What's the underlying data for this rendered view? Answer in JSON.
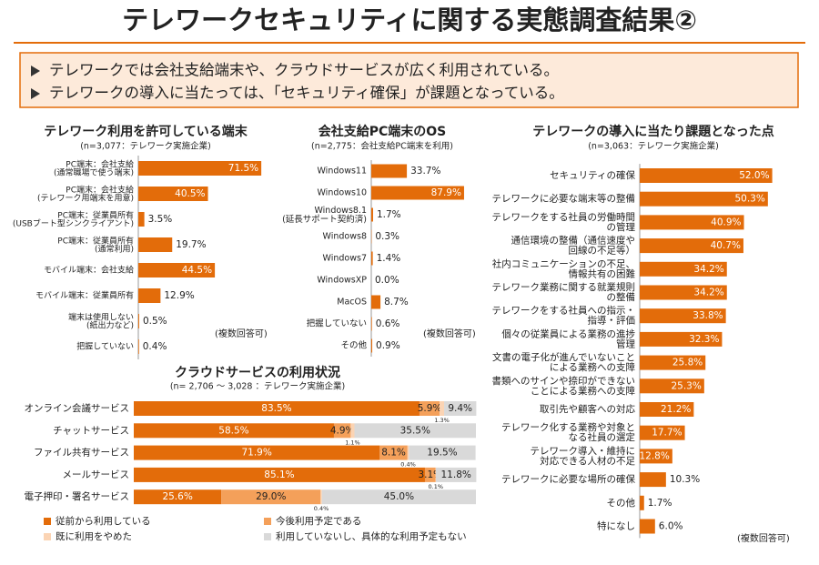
{
  "header": {
    "title": "テレワークセキュリティに関する実態調査結果②"
  },
  "summary": [
    "テレワークでは会社支給端末や、クラウドサービスが広く利用されている。",
    "テレワークの導入に当たっては、「セキュリティ確保」が課題となっている。"
  ],
  "chart_data": [
    {
      "type": "bar",
      "title": "テレワーク利用を許可している端末",
      "subtitle": "(n=3,077：テレワーク実施企業)",
      "note": "(複数回答可)",
      "color": "#e36c0a",
      "categories": [
        "PC端末：会社支給\n(通常職場で使う端末)",
        "PC端末：会社支給\n(テレワーク用端末を用意)",
        "PC端末：従業員所有\n(USBブート型シンクライアント)",
        "PC端末：従業員所有\n(通常利用)",
        "モバイル端末：会社支給",
        "モバイル端末：従業員所有",
        "端末は使用しない\n(紙出力など)",
        "把握していない"
      ],
      "values": [
        71.5,
        40.5,
        3.5,
        19.7,
        44.5,
        12.9,
        0.5,
        0.4
      ],
      "value_labels": [
        "71.5%",
        "40.5%",
        "3.5%",
        "19.7%",
        "44.5%",
        "12.9%",
        "0.5%",
        "0.4%"
      ]
    },
    {
      "type": "bar",
      "title": "会社支給PC端末のOS",
      "subtitle": "(n=2,775：会社支給PC端末を利用)",
      "note": "(複数回答可)",
      "color": "#e36c0a",
      "categories": [
        "Windows11",
        "Windows10",
        "Windows8.1\n(延長サポート契約済)",
        "Windows8",
        "Windows7",
        "WindowsXP",
        "MacOS",
        "把握していない",
        "その他"
      ],
      "values": [
        33.7,
        87.9,
        1.7,
        0.3,
        1.4,
        0.0,
        8.7,
        0.6,
        0.9
      ],
      "value_labels": [
        "33.7%",
        "87.9%",
        "1.7%",
        "0.3%",
        "1.4%",
        "0.0%",
        "8.7%",
        "0.6%",
        "0.9%"
      ]
    },
    {
      "type": "stacked_bar",
      "title": "クラウドサービスの利用状況",
      "subtitle": "(n= 2,706 ～ 3,028 ：テレワーク実施企業)",
      "categories": [
        "オンライン会議サービス",
        "チャットサービス",
        "ファイル共有サービス",
        "メールサービス",
        "電子押印・署名サービス"
      ],
      "series": [
        {
          "name": "従前から利用している",
          "color": "#e36c0a",
          "values": [
            83.5,
            58.5,
            71.9,
            85.1,
            25.6
          ],
          "value_labels": [
            "83.5%",
            "58.5%",
            "71.9%",
            "85.1%",
            "25.6%"
          ]
        },
        {
          "name": "今後利用予定である",
          "color": "#f4a05a",
          "values": [
            5.9,
            4.9,
            8.1,
            3.1,
            29.0
          ],
          "value_labels": [
            "5.9%",
            "4.9%",
            "8.1%",
            "3.1%",
            "29.0%"
          ]
        },
        {
          "name": "既に利用をやめた",
          "color": "#fbd4b4",
          "values": [
            1.3,
            1.1,
            0.4,
            0.1,
            0.4
          ],
          "value_labels": [
            "1.3%",
            "1.1%",
            "0.4%",
            "0.1%",
            "0.4%"
          ]
        },
        {
          "name": "利用していないし、具体的な利用予定もない",
          "color": "#d9d9d9",
          "values": [
            9.4,
            35.5,
            19.5,
            11.8,
            45.0
          ],
          "value_labels": [
            "9.4%",
            "35.5%",
            "19.5%",
            "11.8%",
            "45.0%"
          ]
        }
      ]
    },
    {
      "type": "bar",
      "title": "テレワークの導入に当たり課題となった点",
      "subtitle": "(n=3,063：テレワーク実施企業)",
      "note": "(複数回答可)",
      "color": "#e36c0a",
      "categories": [
        "セキュリティの確保",
        "テレワークに必要な端末等の整備",
        "テレワークをする社員の労働時間\nの管理",
        "通信環境の整備（通信速度や\n回線の不足等）",
        "社内コミュニケーションの不足、\n情報共有の困難",
        "テレワーク業務に関する就業規則\nの整備",
        "テレワークをする社員への指示・\n指導・評価",
        "個々の従業員による業務の進捗\n管理",
        "文書の電子化が進んでいないこと\nによる業務への支障",
        "書類へのサインや捺印ができない\nことによる業務への支障",
        "取引先や顧客への対応",
        "テレワーク化する業務や対象と\nなる社員の選定",
        "テレワーク導入・維持に\n対応できる人材の不足",
        "テレワークに必要な場所の確保",
        "その他",
        "特になし"
      ],
      "values": [
        52.0,
        50.3,
        40.9,
        40.7,
        34.2,
        34.2,
        33.8,
        32.3,
        25.8,
        25.3,
        21.2,
        17.7,
        12.8,
        10.3,
        1.7,
        6.0
      ],
      "value_labels": [
        "52.0%",
        "50.3%",
        "40.9%",
        "40.7%",
        "34.2%",
        "34.2%",
        "33.8%",
        "32.3%",
        "25.8%",
        "25.3%",
        "21.2%",
        "17.7%",
        "12.8%",
        "10.3%",
        "1.7%",
        "6.0%"
      ]
    }
  ]
}
